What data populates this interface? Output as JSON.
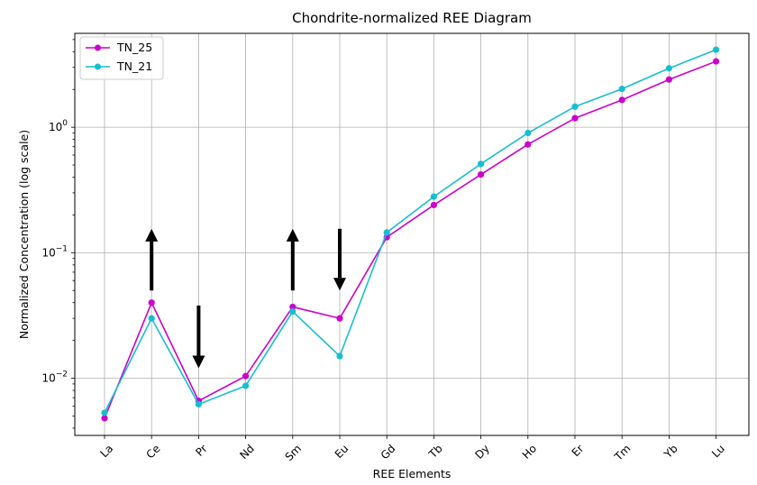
{
  "chart_data": {
    "type": "line",
    "title": "Chondrite-normalized REE Diagram",
    "xlabel": "REE Elements",
    "ylabel": "Normalized Concentration (log scale)",
    "yscale": "log",
    "ylim": [
      0.0035,
      5.6
    ],
    "grid": true,
    "legend_position": "top-left",
    "categories": [
      "La",
      "Ce",
      "Pr",
      "Nd",
      "Sm",
      "Eu",
      "Gd",
      "Tb",
      "Dy",
      "Ho",
      "Er",
      "Tm",
      "Yb",
      "Lu"
    ],
    "yticks": [
      {
        "value": 0.01,
        "base": "10",
        "exp": "−2"
      },
      {
        "value": 0.1,
        "base": "10",
        "exp": "−1"
      },
      {
        "value": 1,
        "base": "10",
        "exp": "0"
      }
    ],
    "series": [
      {
        "name": "TN_25",
        "color": "#cc00cc",
        "values": [
          0.0048,
          0.04,
          0.0066,
          0.0104,
          0.037,
          0.03,
          0.133,
          0.24,
          0.42,
          0.73,
          1.18,
          1.65,
          2.4,
          3.35
        ]
      },
      {
        "name": "TN_21",
        "color": "#17becf",
        "values": [
          0.0053,
          0.03,
          0.0062,
          0.0087,
          0.034,
          0.015,
          0.145,
          0.28,
          0.51,
          0.9,
          1.46,
          2.02,
          2.95,
          4.15
        ]
      }
    ],
    "annotations": [
      {
        "type": "arrow",
        "direction": "up",
        "category": "Ce",
        "from": 0.05,
        "to": 0.155
      },
      {
        "type": "arrow",
        "direction": "down",
        "category": "Pr",
        "from": 0.038,
        "to": 0.012
      },
      {
        "type": "arrow",
        "direction": "up",
        "category": "Sm",
        "from": 0.05,
        "to": 0.155
      },
      {
        "type": "arrow",
        "direction": "down",
        "category": "Eu",
        "from": 0.155,
        "to": 0.05
      }
    ]
  }
}
